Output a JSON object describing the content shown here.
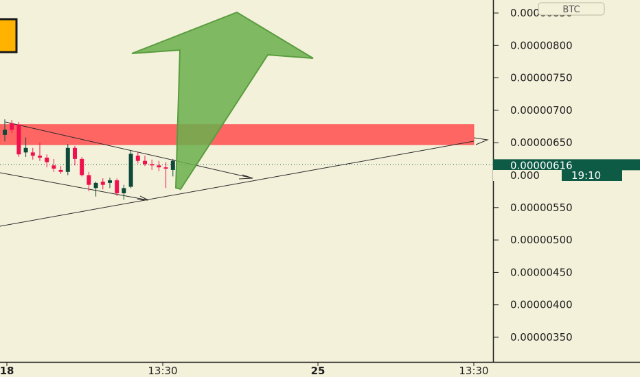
{
  "currency_label": "BTC",
  "price_badge": {
    "value": "0.00000616",
    "color": "#0d5a45"
  },
  "countdown_badge": {
    "value": "19:10",
    "partial_price": "0.000",
    "color": "#0d5a45"
  },
  "colors": {
    "background": "#f3f1da",
    "up_candle": "#0d4a3a",
    "down_candle": "#f0104e",
    "zone_fill": "#ff5a5a",
    "arrow_fill": "#6ab04c",
    "trend_lines": "#2a2a2a"
  },
  "icons": {
    "left_edge_marker": "yellow-square-icon",
    "big_arrow": "up-arrow-icon"
  },
  "chart_data": {
    "type": "candlestick",
    "y_axis": {
      "ticks": [
        "0.00000850",
        "0.00000800",
        "0.00000750",
        "0.00000700",
        "0.00000650",
        "0.00000600",
        "0.00000550",
        "0.00000500",
        "0.00000450",
        "0.00000400",
        "0.00000350"
      ],
      "range": [
        3.1e-06,
        8.6e-06
      ]
    },
    "x_axis": {
      "ticks": [
        "18",
        "13:30",
        "25",
        "13:30"
      ]
    },
    "current_price": 6.16e-06,
    "resistance_zone": [
      6.47e-06,
      6.78e-06
    ],
    "candles": [
      {
        "o": 6.62,
        "h": 6.86,
        "l": 6.52,
        "c": 6.7
      },
      {
        "o": 6.8,
        "h": 6.85,
        "l": 6.65,
        "c": 6.7
      },
      {
        "o": 6.78,
        "h": 6.82,
        "l": 6.28,
        "c": 6.32
      },
      {
        "o": 6.35,
        "h": 6.58,
        "l": 6.28,
        "c": 6.42
      },
      {
        "o": 6.35,
        "h": 6.42,
        "l": 6.24,
        "c": 6.3
      },
      {
        "o": 6.3,
        "h": 6.5,
        "l": 6.22,
        "c": 6.27
      },
      {
        "o": 6.27,
        "h": 6.32,
        "l": 6.12,
        "c": 6.2
      },
      {
        "o": 6.15,
        "h": 6.25,
        "l": 6.05,
        "c": 6.1
      },
      {
        "o": 6.08,
        "h": 6.14,
        "l": 6.02,
        "c": 6.05
      },
      {
        "o": 6.05,
        "h": 6.48,
        "l": 6.0,
        "c": 6.42
      },
      {
        "o": 6.42,
        "h": 6.45,
        "l": 6.15,
        "c": 6.25
      },
      {
        "o": 6.25,
        "h": 6.28,
        "l": 5.98,
        "c": 6.0
      },
      {
        "o": 6.0,
        "h": 6.05,
        "l": 5.75,
        "c": 5.85
      },
      {
        "o": 5.8,
        "h": 5.9,
        "l": 5.67,
        "c": 5.88
      },
      {
        "o": 5.9,
        "h": 5.95,
        "l": 5.78,
        "c": 5.85
      },
      {
        "o": 5.88,
        "h": 5.96,
        "l": 5.8,
        "c": 5.92
      },
      {
        "o": 5.92,
        "h": 5.95,
        "l": 5.68,
        "c": 5.72
      },
      {
        "o": 5.72,
        "h": 5.85,
        "l": 5.62,
        "c": 5.8
      },
      {
        "o": 5.82,
        "h": 6.38,
        "l": 5.8,
        "c": 6.33
      },
      {
        "o": 6.3,
        "h": 6.36,
        "l": 6.18,
        "c": 6.22
      },
      {
        "o": 6.22,
        "h": 6.3,
        "l": 6.14,
        "c": 6.17
      },
      {
        "o": 6.17,
        "h": 6.24,
        "l": 6.08,
        "c": 6.15
      },
      {
        "o": 6.15,
        "h": 6.22,
        "l": 6.06,
        "c": 6.12
      },
      {
        "o": 6.12,
        "h": 6.2,
        "l": 5.8,
        "c": 6.1
      },
      {
        "o": 6.08,
        "h": 6.25,
        "l": 5.98,
        "c": 6.22
      }
    ]
  }
}
